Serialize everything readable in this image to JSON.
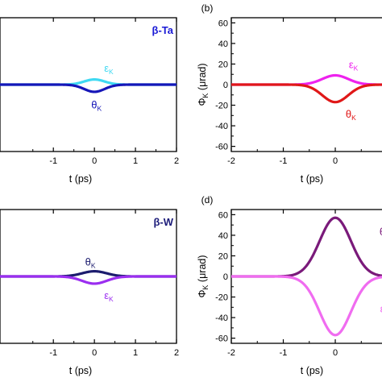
{
  "chart_data": [
    {
      "id": "a",
      "type": "line",
      "panel_label": "",
      "material_label": "β-Ta",
      "material_color": "#1a1ad6",
      "xlabel": "t (ps)",
      "ylabel": "",
      "xlim": [
        -2.3,
        2
      ],
      "ylim": [
        -65,
        65
      ],
      "xticks": [
        -1,
        0,
        1,
        2
      ],
      "xtick_labels": [
        "-1",
        "0",
        "1",
        "2"
      ],
      "yticks": [],
      "ytick_labels": [],
      "series": [
        {
          "name": "εK",
          "color": "#3fd9f2",
          "amplitude": 5,
          "sigma": 0.25,
          "label": {
            "main": "ε",
            "sub": "K"
          }
        },
        {
          "name": "θK",
          "color": "#1616b8",
          "amplitude": -7,
          "sigma": 0.25,
          "label": {
            "main": "θ",
            "sub": "K"
          }
        }
      ]
    },
    {
      "id": "b",
      "type": "line",
      "panel_label": "(b)",
      "material_label": "",
      "xlabel": "t (ps)",
      "ylabel": "ΦK (μrad)",
      "ylabel_main": "Φ",
      "ylabel_sub": "K",
      "ylabel_rest": " (μrad)",
      "xlim": [
        -2,
        1.1
      ],
      "ylim": [
        -65,
        65
      ],
      "xticks": [
        -2,
        -1,
        0,
        1
      ],
      "xtick_labels": [
        "-2",
        "-1",
        "0",
        "1"
      ],
      "yticks": [
        60,
        40,
        20,
        0,
        -20,
        -40,
        -60
      ],
      "ytick_labels": [
        "60",
        "40",
        "20",
        "0",
        "-20",
        "-40",
        "-60"
      ],
      "series": [
        {
          "name": "εK",
          "color": "#ee22ee",
          "amplitude": 9,
          "sigma": 0.25,
          "label": {
            "main": "ε",
            "sub": "K"
          }
        },
        {
          "name": "θK",
          "color": "#e01818",
          "amplitude": -17,
          "sigma": 0.25,
          "label": {
            "main": "θ",
            "sub": "K"
          }
        }
      ]
    },
    {
      "id": "c",
      "type": "line",
      "panel_label": "",
      "material_label": "β-W",
      "material_color": "#1c1c7a",
      "xlabel": "t (ps)",
      "ylabel": "",
      "xlim": [
        -2.3,
        2
      ],
      "ylim": [
        -65,
        65
      ],
      "xticks": [
        -1,
        0,
        1,
        2
      ],
      "xtick_labels": [
        "-1",
        "0",
        "1",
        "2"
      ],
      "yticks": [],
      "ytick_labels": [],
      "series": [
        {
          "name": "θK",
          "color": "#1c1c6e",
          "amplitude": 5,
          "sigma": 0.3,
          "label": {
            "main": "θ",
            "sub": "K"
          }
        },
        {
          "name": "εK",
          "color": "#9b2ef0",
          "amplitude": -7,
          "sigma": 0.3,
          "label": {
            "main": "ε",
            "sub": "K"
          }
        }
      ]
    },
    {
      "id": "d",
      "type": "line",
      "panel_label": "(d)",
      "material_label": "",
      "xlabel": "t (ps)",
      "ylabel": "ΦK (μrad)",
      "ylabel_main": "Φ",
      "ylabel_sub": "K",
      "ylabel_rest": " (μrad)",
      "xlim": [
        -2,
        1.1
      ],
      "ylim": [
        -65,
        65
      ],
      "xticks": [
        -2,
        -1,
        0,
        1
      ],
      "xtick_labels": [
        "-2",
        "-1",
        "0",
        "1"
      ],
      "yticks": [
        60,
        40,
        20,
        0,
        -20,
        -40,
        -60
      ],
      "ytick_labels": [
        "60",
        "40",
        "20",
        "0",
        "-20",
        "-40",
        "-60"
      ],
      "series": [
        {
          "name": "θK",
          "color": "#7a1a7a",
          "amplitude": 57,
          "sigma": 0.3,
          "label": {
            "main": "θ",
            "sub": "K"
          }
        },
        {
          "name": "εK",
          "color": "#f06cf0",
          "amplitude": -57,
          "sigma": 0.3,
          "label": {
            "main": "ε",
            "sub": "K"
          }
        }
      ]
    }
  ]
}
